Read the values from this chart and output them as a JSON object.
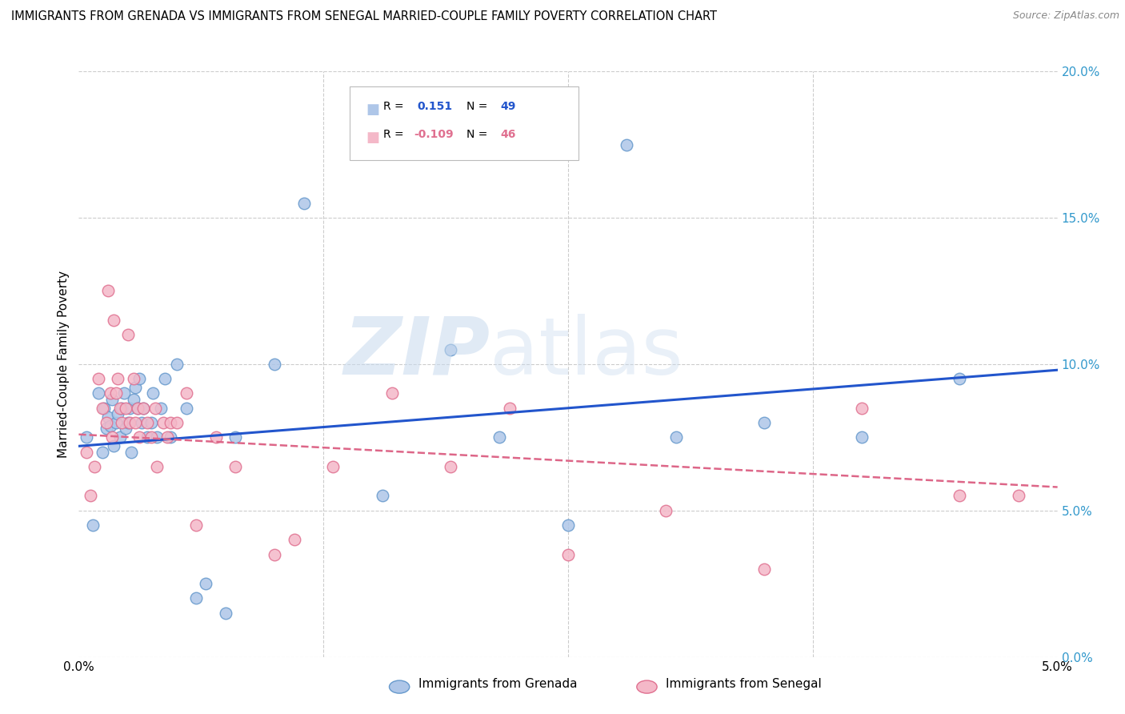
{
  "title": "IMMIGRANTS FROM GRENADA VS IMMIGRANTS FROM SENEGAL MARRIED-COUPLE FAMILY POVERTY CORRELATION CHART",
  "source": "Source: ZipAtlas.com",
  "ylabel": "Married-Couple Family Poverty",
  "right_yvalues": [
    0.0,
    5.0,
    10.0,
    15.0,
    20.0
  ],
  "xmin": 0.0,
  "xmax": 5.0,
  "ymin": 0.0,
  "ymax": 20.0,
  "grenada_R": 0.151,
  "grenada_N": 49,
  "senegal_R": -0.109,
  "senegal_N": 46,
  "grenada_color": "#aec6e8",
  "grenada_edge": "#6699cc",
  "senegal_color": "#f4b8c8",
  "senegal_edge": "#e07090",
  "grenada_line_color": "#2255cc",
  "senegal_line_color": "#dd6688",
  "grenada_x": [
    0.04,
    0.07,
    0.1,
    0.12,
    0.13,
    0.14,
    0.15,
    0.16,
    0.17,
    0.18,
    0.19,
    0.2,
    0.21,
    0.22,
    0.23,
    0.24,
    0.25,
    0.26,
    0.27,
    0.28,
    0.29,
    0.3,
    0.31,
    0.32,
    0.33,
    0.35,
    0.37,
    0.38,
    0.4,
    0.42,
    0.44,
    0.47,
    0.5,
    0.55,
    0.6,
    0.65,
    0.75,
    0.8,
    1.0,
    1.15,
    1.55,
    1.9,
    2.15,
    2.5,
    2.8,
    3.05,
    3.5,
    4.0,
    4.5
  ],
  "grenada_y": [
    7.5,
    4.5,
    9.0,
    7.0,
    8.5,
    7.8,
    8.2,
    7.9,
    8.8,
    7.2,
    8.0,
    8.3,
    7.5,
    8.5,
    9.0,
    7.8,
    8.0,
    8.5,
    7.0,
    8.8,
    9.2,
    8.5,
    9.5,
    8.0,
    8.5,
    7.5,
    8.0,
    9.0,
    7.5,
    8.5,
    9.5,
    7.5,
    10.0,
    8.5,
    2.0,
    2.5,
    1.5,
    7.5,
    10.0,
    15.5,
    5.5,
    10.5,
    7.5,
    4.5,
    17.5,
    7.5,
    8.0,
    7.5,
    9.5
  ],
  "senegal_x": [
    0.04,
    0.06,
    0.08,
    0.1,
    0.12,
    0.14,
    0.15,
    0.16,
    0.17,
    0.18,
    0.19,
    0.2,
    0.21,
    0.22,
    0.24,
    0.25,
    0.26,
    0.28,
    0.29,
    0.3,
    0.31,
    0.33,
    0.35,
    0.37,
    0.39,
    0.4,
    0.43,
    0.45,
    0.47,
    0.5,
    0.55,
    0.6,
    0.7,
    0.8,
    1.0,
    1.1,
    1.3,
    1.6,
    1.9,
    2.2,
    2.5,
    3.0,
    3.5,
    4.0,
    4.5,
    4.8
  ],
  "senegal_y": [
    7.0,
    5.5,
    6.5,
    9.5,
    8.5,
    8.0,
    12.5,
    9.0,
    7.5,
    11.5,
    9.0,
    9.5,
    8.5,
    8.0,
    8.5,
    11.0,
    8.0,
    9.5,
    8.0,
    8.5,
    7.5,
    8.5,
    8.0,
    7.5,
    8.5,
    6.5,
    8.0,
    7.5,
    8.0,
    8.0,
    9.0,
    4.5,
    7.5,
    6.5,
    3.5,
    4.0,
    6.5,
    9.0,
    6.5,
    8.5,
    3.5,
    5.0,
    3.0,
    8.5,
    5.5,
    5.5
  ]
}
